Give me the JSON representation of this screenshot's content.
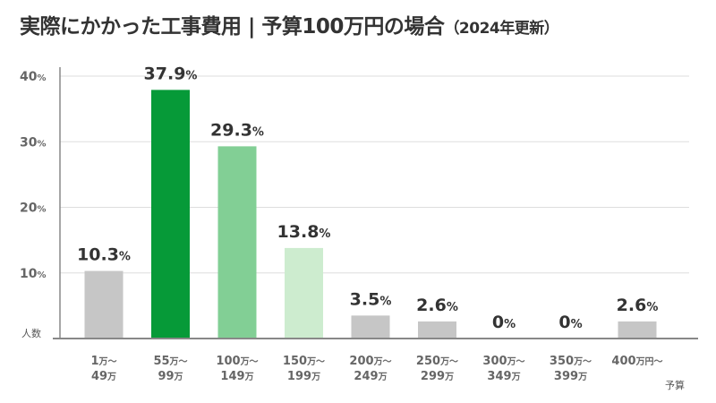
{
  "title_main": "実際にかかった工事費用 | 予算100万円の場合",
  "title_sub": "（2024年更新）",
  "chart_data": {
    "type": "bar",
    "title": "実際にかかった工事費用 | 予算100万円の場合（2024年更新）",
    "ylabel": "人数",
    "xlabel": "予算",
    "ylim": [
      0,
      40
    ],
    "grid": true,
    "yticks": [
      {
        "value": 10,
        "label": "10",
        "unit": "%"
      },
      {
        "value": 20,
        "label": "20",
        "unit": "%"
      },
      {
        "value": 30,
        "label": "30",
        "unit": "%"
      },
      {
        "value": 40,
        "label": "40",
        "unit": "%"
      }
    ],
    "categories": [
      {
        "l1": "1",
        "u1": "万〜",
        "l2": "49",
        "u2": "万"
      },
      {
        "l1": "55",
        "u1": "万〜",
        "l2": "99",
        "u2": "万"
      },
      {
        "l1": "100",
        "u1": "万〜",
        "l2": "149",
        "u2": "万"
      },
      {
        "l1": "150",
        "u1": "万〜",
        "l2": "199",
        "u2": "万"
      },
      {
        "l1": "200",
        "u1": "万〜",
        "l2": "249",
        "u2": "万"
      },
      {
        "l1": "250",
        "u1": "万〜",
        "l2": "299",
        "u2": "万"
      },
      {
        "l1": "300",
        "u1": "万〜",
        "l2": "349",
        "u2": "万"
      },
      {
        "l1": "350",
        "u1": "万〜",
        "l2": "399",
        "u2": "万"
      },
      {
        "l1": "400",
        "u1": "万円〜",
        "l2": "",
        "u2": ""
      }
    ],
    "values": [
      10.3,
      37.9,
      29.3,
      13.8,
      3.5,
      2.6,
      0,
      0,
      2.6
    ],
    "labels": [
      "10.3",
      "37.9",
      "29.3",
      "13.8",
      "3.5",
      "2.6",
      "0",
      "0",
      "2.6"
    ],
    "label_unit": "%",
    "colors": [
      "#c6c6c6",
      "#069a38",
      "#82cf95",
      "#cdeccf",
      "#c6c6c6",
      "#c6c6c6",
      "#c6c6c6",
      "#c6c6c6",
      "#c6c6c6"
    ]
  }
}
